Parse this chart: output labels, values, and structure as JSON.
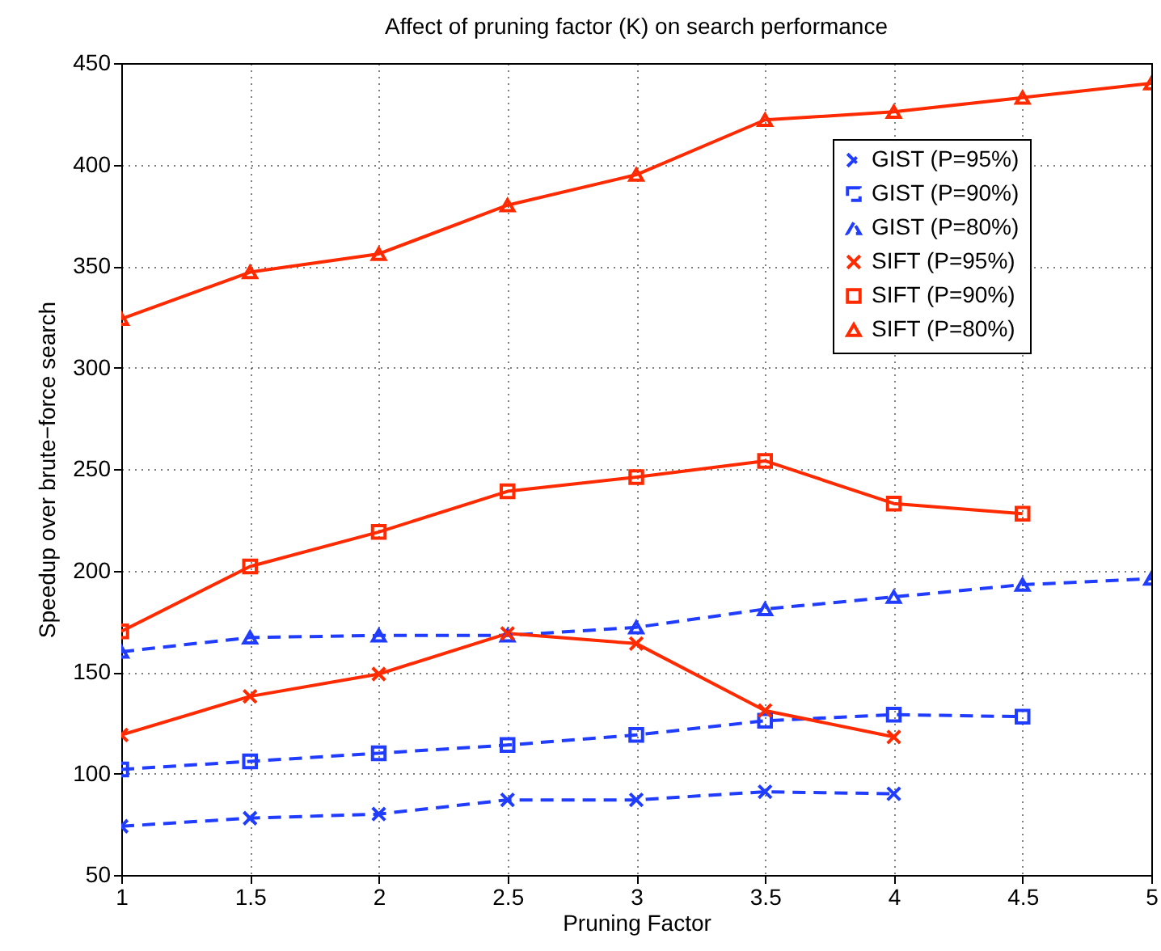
{
  "chart_data": {
    "type": "line",
    "title": "Affect of pruning factor (K) on search performance",
    "xlabel": "Pruning Factor",
    "ylabel": "Speedup over brute−force search",
    "xlim": [
      1,
      5
    ],
    "xticks": [
      1,
      1.5,
      2,
      2.5,
      3,
      3.5,
      4,
      4.5,
      5
    ],
    "ylim": [
      50,
      450
    ],
    "yticks": [
      50,
      100,
      150,
      200,
      250,
      300,
      350,
      400,
      450
    ],
    "grid": true,
    "legend": "top right",
    "series": [
      {
        "name": "GIST (P=95%)",
        "color": "#1f3cff",
        "marker": "cross",
        "line_style": "dashed",
        "x": [
          1,
          1.5,
          2,
          2.5,
          3,
          3.5,
          4
        ],
        "values": [
          74,
          78,
          80,
          87,
          87,
          91,
          90
        ]
      },
      {
        "name": "GIST (P=90%)",
        "color": "#1f3cff",
        "marker": "square",
        "line_style": "dashed",
        "x": [
          1,
          1.5,
          2,
          2.5,
          3,
          3.5,
          4,
          4.5
        ],
        "values": [
          102,
          106,
          110,
          114,
          119,
          126,
          129,
          128
        ]
      },
      {
        "name": "GIST (P=80%)",
        "color": "#1f3cff",
        "marker": "triangle",
        "line_style": "dashed",
        "x": [
          1,
          1.5,
          2,
          2.5,
          3,
          3.5,
          4,
          4.5,
          5
        ],
        "values": [
          160,
          167,
          168,
          168,
          172,
          181,
          187,
          193,
          196
        ]
      },
      {
        "name": "SIFT (P=95%)",
        "color": "#ff2a00",
        "marker": "cross",
        "line_style": "solid",
        "x": [
          1,
          1.5,
          2,
          2.5,
          3,
          3.5,
          4
        ],
        "values": [
          119,
          138,
          149,
          169,
          164,
          131,
          118
        ]
      },
      {
        "name": "SIFT (P=90%)",
        "color": "#ff2a00",
        "marker": "square",
        "line_style": "solid",
        "x": [
          1,
          1.5,
          2,
          2.5,
          3,
          3.5,
          4,
          4.5
        ],
        "values": [
          170,
          202,
          219,
          239,
          246,
          254,
          233,
          228
        ]
      },
      {
        "name": "SIFT (P=80%)",
        "color": "#ff2a00",
        "marker": "triangle",
        "line_style": "solid",
        "x": [
          1,
          1.5,
          2,
          2.5,
          3,
          3.5,
          4,
          4.5,
          5
        ],
        "values": [
          324,
          347,
          356,
          380,
          395,
          422,
          426,
          433,
          440
        ]
      }
    ]
  }
}
